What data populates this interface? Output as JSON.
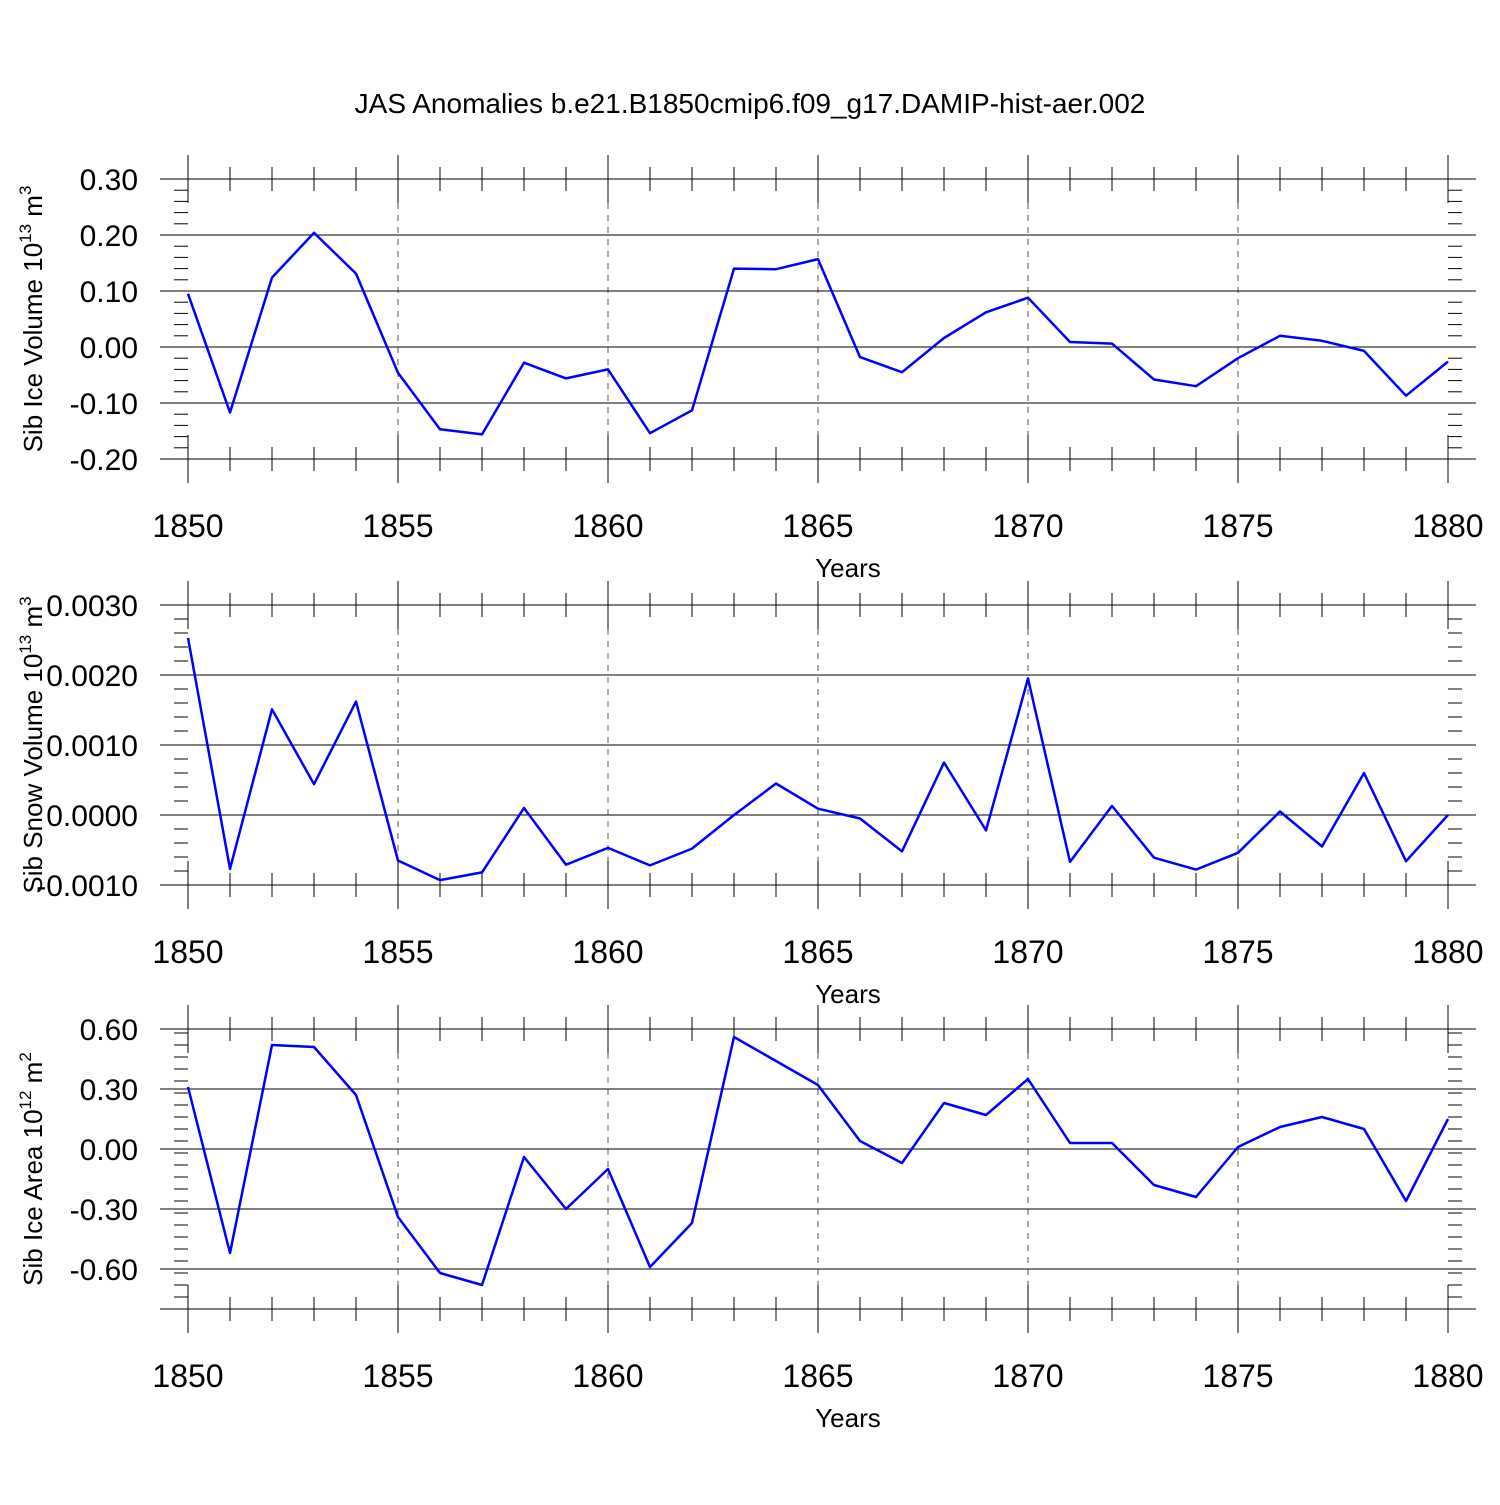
{
  "figure": {
    "title": "JAS Anomalies b.e21.B1850cmip6.f09_g17.DAMIP-hist-aer.002",
    "line_color": "#0000ff"
  },
  "chart_data": [
    {
      "type": "line",
      "title": "",
      "xlabel": "Years",
      "ylabel": "Sib Ice Volume 10",
      "ylabel_exponent": "13",
      "ylabel_unit": "m",
      "ylabel_unit_exponent": "3",
      "xlim": [
        1850,
        1880
      ],
      "ylim": [
        -0.2,
        0.3
      ],
      "yticks": [
        -0.2,
        -0.1,
        0.0,
        0.1,
        0.2,
        0.3
      ],
      "ytick_labels": [
        "-0.20",
        "-0.10",
        "0.00",
        "0.10",
        "0.20",
        "0.30"
      ],
      "xticks": [
        1850,
        1855,
        1860,
        1865,
        1870,
        1875,
        1880
      ],
      "xtick_labels": [
        "1850",
        "1855",
        "1860",
        "1865",
        "1870",
        "1875",
        "1880"
      ],
      "grid": "vertical dashed at major x ticks",
      "series": [
        {
          "name": "Sib Ice Volume",
          "x": [
            1850,
            1851,
            1852,
            1853,
            1854,
            1855,
            1856,
            1857,
            1858,
            1859,
            1860,
            1861,
            1862,
            1863,
            1864,
            1865,
            1866,
            1867,
            1868,
            1869,
            1870,
            1871,
            1872,
            1873,
            1874,
            1875,
            1876,
            1877,
            1878,
            1879,
            1880
          ],
          "values": [
            0.095,
            -0.117,
            0.124,
            0.204,
            0.131,
            -0.046,
            -0.147,
            -0.156,
            -0.028,
            -0.056,
            -0.04,
            -0.154,
            -0.113,
            0.14,
            0.139,
            0.157,
            -0.018,
            -0.045,
            0.016,
            0.062,
            0.088,
            0.009,
            0.006,
            -0.058,
            -0.07,
            -0.02,
            0.02,
            0.011,
            -0.007,
            -0.087,
            -0.026
          ]
        }
      ]
    },
    {
      "type": "line",
      "title": "",
      "xlabel": "Years",
      "ylabel": "Sib Snow Volume 10",
      "ylabel_exponent": "13",
      "ylabel_unit": "m",
      "ylabel_unit_exponent": "3",
      "xlim": [
        1850,
        1880
      ],
      "ylim": [
        -0.001,
        0.003
      ],
      "yticks": [
        -0.001,
        0.0,
        0.001,
        0.002,
        0.003
      ],
      "ytick_labels": [
        "-0.0010",
        "0.0000",
        "0.0010",
        "0.0020",
        "0.0030"
      ],
      "xticks": [
        1850,
        1855,
        1860,
        1865,
        1870,
        1875,
        1880
      ],
      "xtick_labels": [
        "1850",
        "1855",
        "1860",
        "1865",
        "1870",
        "1875",
        "1880"
      ],
      "grid": "vertical dashed at major x ticks",
      "series": [
        {
          "name": "Sib Snow Volume",
          "x": [
            1850,
            1851,
            1852,
            1853,
            1854,
            1855,
            1856,
            1857,
            1858,
            1859,
            1860,
            1861,
            1862,
            1863,
            1864,
            1865,
            1866,
            1867,
            1868,
            1869,
            1870,
            1871,
            1872,
            1873,
            1874,
            1875,
            1876,
            1877,
            1878,
            1879,
            1880
          ],
          "values": [
            0.00253,
            -0.00077,
            0.00151,
            0.00044,
            0.00162,
            -0.00065,
            -0.00093,
            -0.00082,
            0.0001,
            -0.00071,
            -0.00047,
            -0.00072,
            -0.00048,
            0.0,
            0.00045,
            9e-05,
            -5e-05,
            -0.00052,
            0.00075,
            -0.00022,
            0.00195,
            -0.00067,
            0.00013,
            -0.00061,
            -0.00078,
            -0.00054,
            5e-05,
            -0.00045,
            0.0006,
            -0.00066,
            0.0
          ]
        }
      ]
    },
    {
      "type": "line",
      "title": "",
      "xlabel": "Years",
      "ylabel": "Sib Ice Area 10",
      "ylabel_exponent": "12",
      "ylabel_unit": "m",
      "ylabel_unit_exponent": "2",
      "xlim": [
        1850,
        1880
      ],
      "ylim": [
        -0.8,
        0.6
      ],
      "yticks": [
        -0.6,
        -0.3,
        0.0,
        0.3,
        0.6
      ],
      "ytick_labels": [
        "-0.60",
        "-0.30",
        "0.00",
        "0.30",
        "0.60"
      ],
      "xticks": [
        1850,
        1855,
        1860,
        1865,
        1870,
        1875,
        1880
      ],
      "xtick_labels": [
        "1850",
        "1855",
        "1860",
        "1865",
        "1870",
        "1875",
        "1880"
      ],
      "grid": "vertical dashed at major x ticks",
      "series": [
        {
          "name": "Sib Ice Area",
          "x": [
            1850,
            1851,
            1852,
            1853,
            1854,
            1855,
            1856,
            1857,
            1858,
            1859,
            1860,
            1861,
            1862,
            1863,
            1864,
            1865,
            1866,
            1867,
            1868,
            1869,
            1870,
            1871,
            1872,
            1873,
            1874,
            1875,
            1876,
            1877,
            1878,
            1879,
            1880
          ],
          "values": [
            0.31,
            -0.52,
            0.52,
            0.51,
            0.27,
            -0.34,
            -0.62,
            -0.68,
            -0.04,
            -0.3,
            -0.1,
            -0.59,
            -0.37,
            0.56,
            0.44,
            0.32,
            0.04,
            -0.07,
            0.23,
            0.17,
            0.35,
            0.03,
            0.03,
            -0.18,
            -0.24,
            0.01,
            0.11,
            0.16,
            0.1,
            -0.26,
            0.15
          ]
        }
      ]
    }
  ]
}
